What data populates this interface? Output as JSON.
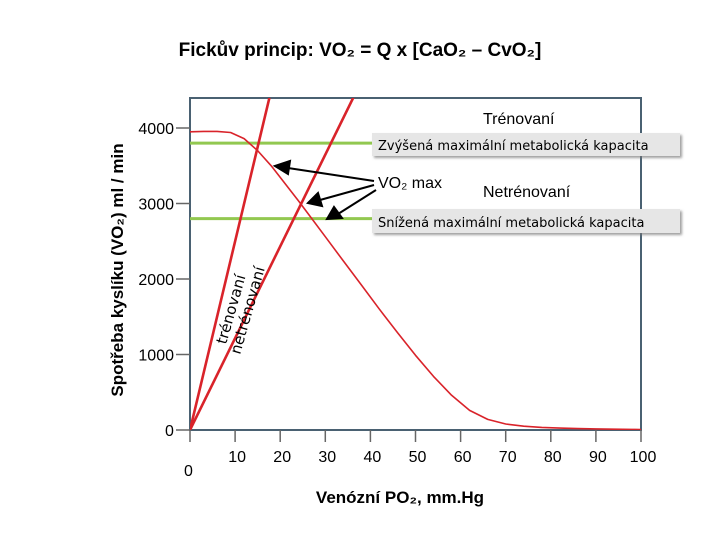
{
  "chart_data": {
    "type": "line",
    "title": "Fickův princip:  VO₂ = Q x [CaO₂ – CvO₂]",
    "xlabel": "Venózní PO₂, mm.Hg",
    "ylabel": "Spotřeba kyslíku (VO₂) ml / min",
    "xlim": [
      0,
      100
    ],
    "ylim": [
      0,
      4000
    ],
    "x_ticks": [
      "10",
      "20",
      "30",
      "40",
      "50",
      "60",
      "70",
      "80",
      "90",
      "100"
    ],
    "y_ticks": [
      "1000",
      "2000",
      "3000",
      "4000"
    ],
    "origin_labels": {
      "y": "0",
      "x": "0"
    },
    "grid": false,
    "series": [
      {
        "name": "Trénovaní",
        "kind": "straight-line",
        "color": "#d9232a",
        "x": [
          0,
          37
        ],
        "y": [
          0,
          4500
        ]
      },
      {
        "name": "Netrénovaní",
        "kind": "straight-line",
        "color": "#d9232a",
        "x": [
          0,
          18
        ],
        "y": [
          0,
          4500
        ]
      },
      {
        "name": "",
        "kind": "curve",
        "color": "#d9232a",
        "x": [
          0,
          3,
          6,
          9,
          12,
          15,
          18,
          21,
          24,
          27,
          30,
          34,
          38,
          42,
          46,
          50,
          54,
          58,
          62,
          66,
          70,
          74,
          78,
          82,
          86,
          90,
          94,
          98,
          100
        ],
        "y": [
          3950,
          3955,
          3955,
          3940,
          3860,
          3700,
          3500,
          3270,
          3040,
          2800,
          2560,
          2240,
          1920,
          1600,
          1290,
          990,
          710,
          460,
          260,
          140,
          80,
          50,
          35,
          25,
          18,
          14,
          10,
          8,
          6
        ]
      }
    ],
    "reference_lines": [
      {
        "label": "Zvýšená maximální metabolická kapacita",
        "y": 3800,
        "color": "#92c850"
      },
      {
        "label": "Snížená maximální metabolická kapacita",
        "y": 2800,
        "color": "#92c850"
      }
    ],
    "annotations": {
      "trained": "Trénovaní",
      "untrained": "Netrénovaní",
      "vo2max": "VO₂ max",
      "line_trained": "trénovaní",
      "line_untrained": "netrénovaní"
    },
    "colors": {
      "frame": "#4a6172",
      "curve": "#d9232a",
      "ref": "#92c850",
      "label_box": "#e6e6e6"
    }
  }
}
